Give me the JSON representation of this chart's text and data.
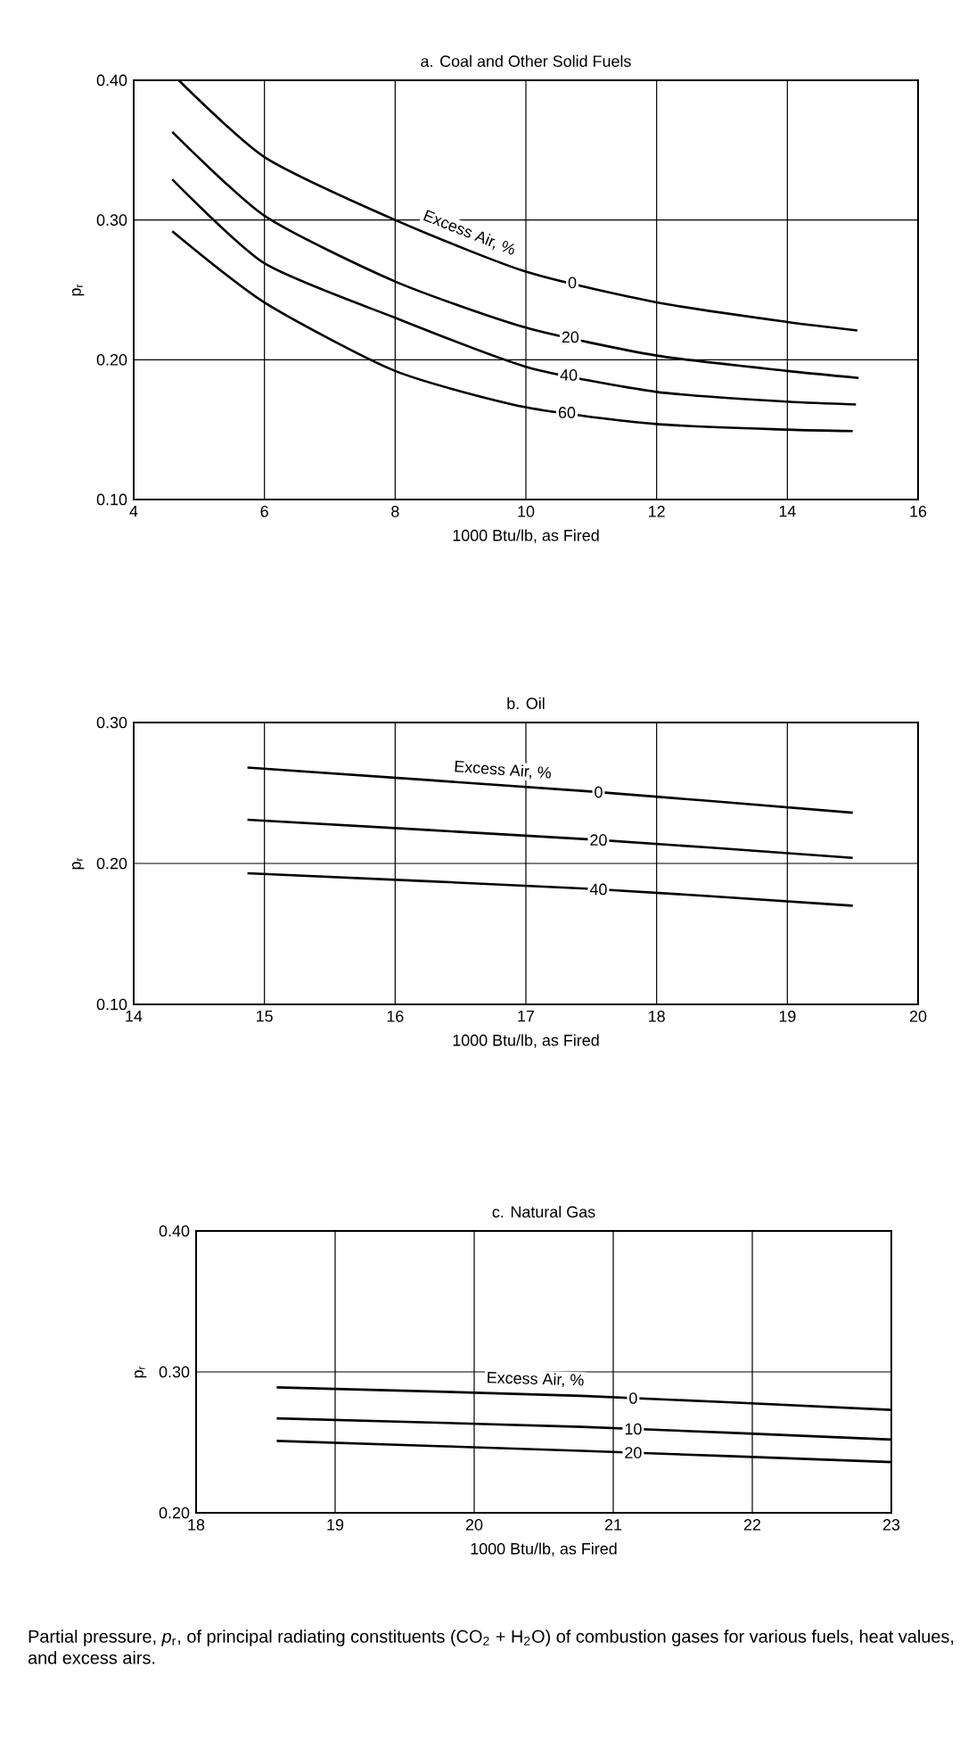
{
  "chart_data": [
    {
      "type": "line",
      "title": "a. Coal and Other Solid Fuels",
      "xlabel": "1000 Btu/lb, as Fired",
      "ylabel": "p$_{r}$",
      "annotations": [
        "Excess Air, %"
      ],
      "grid": true,
      "marker": "none",
      "xlim": [
        4,
        16
      ],
      "xticks": [
        4,
        6,
        8,
        10,
        12,
        14,
        16
      ],
      "ylim": [
        0.1,
        0.4
      ],
      "yticks": [
        {
          "value": 0.1,
          "label": "0.10"
        },
        {
          "value": 0.2,
          "label": "0.20"
        },
        {
          "value": 0.3,
          "label": "0.30"
        },
        {
          "value": 0.4,
          "label": "0.40"
        }
      ],
      "series": [
        {
          "name": "0",
          "color": "#000000",
          "x": [
            4.69,
            6,
            8,
            10,
            12,
            14,
            15.07
          ],
          "values": [
            0.4,
            0.345,
            0.3,
            0.263,
            0.241,
            0.227,
            0.221
          ]
        },
        {
          "name": "20",
          "color": "#000000",
          "x": [
            4.59,
            6,
            8,
            10,
            12,
            14,
            15.09
          ],
          "values": [
            0.363,
            0.303,
            0.256,
            0.223,
            0.203,
            0.192,
            0.187
          ]
        },
        {
          "name": "40",
          "color": "#000000",
          "x": [
            4.59,
            6,
            8,
            10,
            12,
            14,
            15.05
          ],
          "values": [
            0.329,
            0.269,
            0.23,
            0.195,
            0.177,
            0.17,
            0.168
          ]
        },
        {
          "name": "60",
          "color": "#000000",
          "x": [
            4.59,
            6,
            8,
            10,
            12,
            14,
            15.0
          ],
          "values": [
            0.292,
            0.241,
            0.192,
            0.166,
            0.154,
            0.15,
            0.149
          ]
        }
      ]
    },
    {
      "type": "line",
      "title": "b. Oil",
      "xlabel": "1000 Btu/lb, as Fired",
      "ylabel": "p$_{r}$",
      "annotations": [
        "Excess Air, %"
      ],
      "grid": true,
      "marker": "none",
      "xlim": [
        14,
        20
      ],
      "xticks": [
        14,
        15,
        16,
        17,
        18,
        19,
        20
      ],
      "ylim": [
        0.1,
        0.3
      ],
      "yticks": [
        {
          "value": 0.1,
          "label": "0.10"
        },
        {
          "value": 0.2,
          "label": "0.20"
        },
        {
          "value": 0.3,
          "label": "0.30"
        }
      ],
      "series": [
        {
          "name": "0",
          "color": "#000000",
          "x": [
            14.87,
            17.5,
            19.5
          ],
          "values": [
            0.268,
            0.251,
            0.236
          ]
        },
        {
          "name": "20",
          "color": "#000000",
          "x": [
            14.87,
            17.5,
            19.5
          ],
          "values": [
            0.231,
            0.217,
            0.204
          ]
        },
        {
          "name": "40",
          "color": "#000000",
          "x": [
            14.87,
            17.5,
            19.5
          ],
          "values": [
            0.193,
            0.182,
            0.17
          ]
        }
      ]
    },
    {
      "type": "line",
      "title": "c. Natural Gas",
      "xlabel": "1000 Btu/lb, as Fired",
      "ylabel": "p$_{r}$",
      "annotations": [
        "Excess Air, %",
        "Partial pressure, *p*$_{r}$, of principal radiating constituents (CO$_{2}$ + H$_{2}$O) of combustion gases for various fuels, heat values, and excess airs."
      ],
      "grid": true,
      "marker": "none",
      "xlim": [
        18,
        23
      ],
      "xticks": [
        18,
        19,
        20,
        21,
        22,
        23
      ],
      "ylim": [
        0.2,
        0.4
      ],
      "yticks": [
        {
          "value": 0.2,
          "label": "0.20"
        },
        {
          "value": 0.3,
          "label": "0.30"
        },
        {
          "value": 0.4,
          "label": "0.40"
        }
      ],
      "series": [
        {
          "name": "0",
          "color": "#000000",
          "x": [
            18.58,
            20.77,
            23
          ],
          "values": [
            0.289,
            0.283,
            0.273
          ]
        },
        {
          "name": "10",
          "color": "#000000",
          "x": [
            18.58,
            20.77,
            23
          ],
          "values": [
            0.267,
            0.261,
            0.252
          ]
        },
        {
          "name": "20",
          "color": "#000000",
          "x": [
            18.58,
            20.77,
            23
          ],
          "values": [
            0.251,
            0.244,
            0.236
          ]
        }
      ]
    }
  ]
}
